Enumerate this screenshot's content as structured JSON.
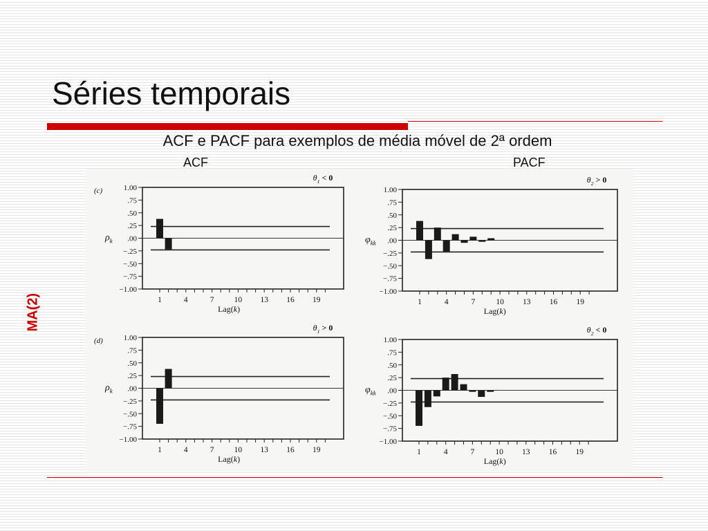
{
  "slide": {
    "title": "Séries temporais",
    "subtitle": "ACF e PACF para exemplos de média móvel de 2ª ordem",
    "acf_label": "ACF",
    "pacf_label": "PACF",
    "side_label": "MA(2)",
    "accent_color": "#cc0000"
  },
  "chart_data": [
    {
      "type": "bar",
      "panel_label": "(c)",
      "condition": "θ1 < 0",
      "ylabel": "ρk",
      "xlabel": "Lag(k)",
      "ylim": [
        -1.0,
        1.0
      ],
      "yticks": [
        "1.00",
        ".75",
        ".50",
        ".25",
        ".00",
        "−.25",
        "−.50",
        "−.75",
        "−1.00"
      ],
      "xticks": [
        1,
        4,
        7,
        10,
        13,
        16,
        19
      ],
      "x": [
        1,
        2
      ],
      "values": [
        0.38,
        -0.22
      ],
      "bounds": [
        0.23,
        -0.23
      ],
      "grid": false
    },
    {
      "type": "bar",
      "panel_label": "",
      "condition": "θ2 > 0",
      "ylabel": "φkk",
      "xlabel": "Lag(k)",
      "ylim": [
        -1.0,
        1.0
      ],
      "yticks": [
        "1.00",
        ".75",
        ".50",
        ".25",
        ".00",
        "−.25",
        "−.50",
        "−.75",
        "−1.00"
      ],
      "xticks": [
        1,
        4,
        7,
        10,
        13,
        16,
        19
      ],
      "x": [
        1,
        2,
        3,
        4,
        5,
        6,
        7,
        8,
        9
      ],
      "values": [
        0.38,
        -0.37,
        0.25,
        -0.22,
        0.12,
        -0.05,
        0.07,
        -0.03,
        0.04
      ],
      "bounds": [
        0.23,
        -0.23
      ],
      "grid": false
    },
    {
      "type": "bar",
      "panel_label": "(d)",
      "condition": "θ1 > 0",
      "ylabel": "ρk",
      "xlabel": "Lag(k)",
      "ylim": [
        -1.0,
        1.0
      ],
      "yticks": [
        "1.00",
        ".75",
        ".50",
        ".25",
        ".00",
        "−.25",
        "−.50",
        "−.75",
        "−1.00"
      ],
      "xticks": [
        1,
        4,
        7,
        10,
        13,
        16,
        19
      ],
      "x": [
        1,
        2
      ],
      "values": [
        -0.7,
        0.38
      ],
      "bounds": [
        0.23,
        -0.23
      ],
      "grid": false
    },
    {
      "type": "bar",
      "panel_label": "",
      "condition": "θ2 < 0",
      "ylabel": "φkk",
      "xlabel": "Lag(k)",
      "ylim": [
        -1.0,
        1.0
      ],
      "yticks": [
        "1.00",
        ".75",
        ".50",
        ".25",
        ".00",
        "−.25",
        "−.50",
        "−.75",
        "−1.00"
      ],
      "xticks": [
        1,
        4,
        7,
        10,
        13,
        16,
        19
      ],
      "x": [
        1,
        2,
        3,
        4,
        5,
        6,
        7,
        8,
        9
      ],
      "values": [
        -0.7,
        -0.33,
        -0.12,
        0.25,
        0.32,
        0.12,
        -0.03,
        -0.13,
        -0.03
      ],
      "bounds": [
        0.23,
        -0.23
      ],
      "grid": false
    }
  ]
}
